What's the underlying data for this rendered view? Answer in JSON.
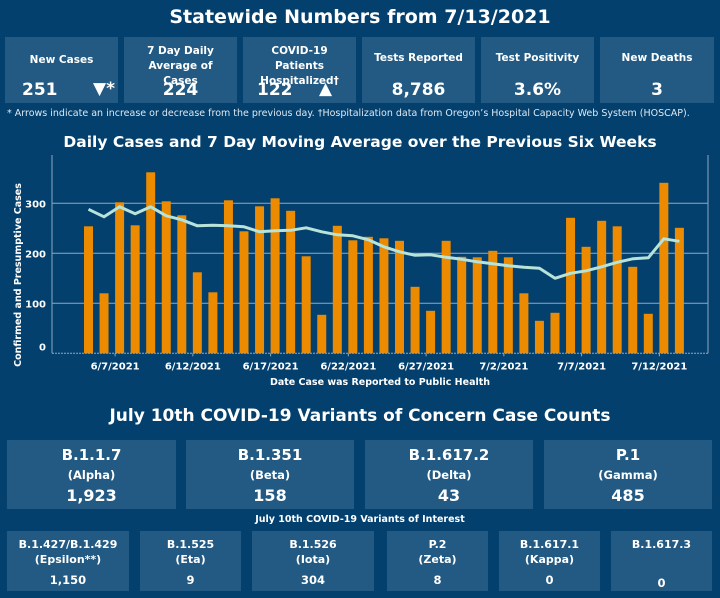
{
  "header": {
    "title": "Statewide Numbers from 7/13/2021"
  },
  "kpis": [
    {
      "label": "New Cases",
      "value": "251",
      "arrow": "▼*",
      "arrow_meaning": "decrease"
    },
    {
      "label": "7 Day Daily Average of Cases",
      "value": "224"
    },
    {
      "label": "COVID-19 Patients Hospitalized†",
      "value": "122",
      "arrow": "▲",
      "arrow_meaning": "increase"
    },
    {
      "label": "Tests Reported",
      "value": "8,786"
    },
    {
      "label": "Test Positivity",
      "value": "3.6%"
    },
    {
      "label": "New Deaths",
      "value": "3"
    }
  ],
  "footnote": "* Arrows indicate an increase or decrease from the previous day. †Hospitalization data from Oregon’s Hospital Capacity Web System (HOSCAP).",
  "colors": {
    "background": "#03406e",
    "tile": "#225a83",
    "bar": "#ec8a00",
    "line": "#b7e3d9"
  },
  "chart_data": {
    "type": "bar",
    "title": "Daily Cases and 7 Day Moving Average over the Previous Six Weeks",
    "xlabel": "Date Case was Reported to Public Health",
    "ylabel": "Confirmed and Presumptive Cases",
    "ylim": [
      0,
      370
    ],
    "yticks": [
      0,
      100,
      200,
      300
    ],
    "grid": true,
    "x": [
      "6/5/2021",
      "6/6/2021",
      "6/7/2021",
      "6/8/2021",
      "6/9/2021",
      "6/10/2021",
      "6/11/2021",
      "6/12/2021",
      "6/13/2021",
      "6/14/2021",
      "6/15/2021",
      "6/16/2021",
      "6/17/2021",
      "6/18/2021",
      "6/19/2021",
      "6/20/2021",
      "6/21/2021",
      "6/22/2021",
      "6/23/2021",
      "6/24/2021",
      "6/25/2021",
      "6/26/2021",
      "6/27/2021",
      "6/28/2021",
      "6/29/2021",
      "6/30/2021",
      "7/1/2021",
      "7/2/2021",
      "7/3/2021",
      "7/4/2021",
      "7/5/2021",
      "7/6/2021",
      "7/7/2021",
      "7/8/2021",
      "7/9/2021",
      "7/10/2021",
      "7/11/2021",
      "7/12/2021",
      "7/13/2021"
    ],
    "xtick_labels": [
      "6/7/2021",
      "6/12/2021",
      "6/17/2021",
      "6/22/2021",
      "6/27/2021",
      "7/2/2021",
      "7/7/2021",
      "7/12/2021"
    ],
    "series": [
      {
        "name": "Daily Cases",
        "type": "bar",
        "values": [
          254,
          120,
          302,
          256,
          362,
          304,
          276,
          162,
          122,
          306,
          244,
          294,
          310,
          285,
          194,
          77,
          255,
          226,
          233,
          230,
          225,
          133,
          85,
          225,
          193,
          192,
          205,
          192,
          120,
          65,
          81,
          271,
          213,
          265,
          254,
          173,
          79,
          341,
          251
        ]
      },
      {
        "name": "7 Day Moving Average",
        "type": "line",
        "values": [
          288,
          273,
          293,
          279,
          293,
          275,
          267,
          255,
          256,
          255,
          253,
          243,
          245,
          246,
          251,
          243,
          237,
          235,
          227,
          213,
          203,
          196,
          197,
          192,
          188,
          183,
          179,
          175,
          172,
          170,
          150,
          160,
          165,
          173,
          182,
          189,
          191,
          229,
          224
        ]
      }
    ]
  },
  "variants": {
    "title": "July 10th  COVID-19 Variants of Concern Case Counts",
    "concern": [
      {
        "name": "B.1.1.7",
        "alias": "(Alpha)",
        "count": "1,923"
      },
      {
        "name": "B.1.351",
        "alias": "(Beta)",
        "count": "158"
      },
      {
        "name": "B.1.617.2",
        "alias": "(Delta)",
        "count": "43"
      },
      {
        "name": "P.1",
        "alias": "(Gamma)",
        "count": "485"
      }
    ],
    "interest_title": "July 10th COVID-19 Variants of Interest",
    "interest": [
      {
        "name": "B.1.427/B.1.429",
        "alias": "(Epsilon**)",
        "count": "1,150"
      },
      {
        "name": "B.1.525",
        "alias": "(Eta)",
        "count": "9"
      },
      {
        "name": "B.1.526",
        "alias": "(Iota)",
        "count": "304"
      },
      {
        "name": "P.2",
        "alias": "(Zeta)",
        "count": "8"
      },
      {
        "name": "B.1.617.1",
        "alias": "(Kappa)",
        "count": "0"
      },
      {
        "name": "B.1.617.3",
        "alias": "",
        "count": "0"
      }
    ]
  }
}
